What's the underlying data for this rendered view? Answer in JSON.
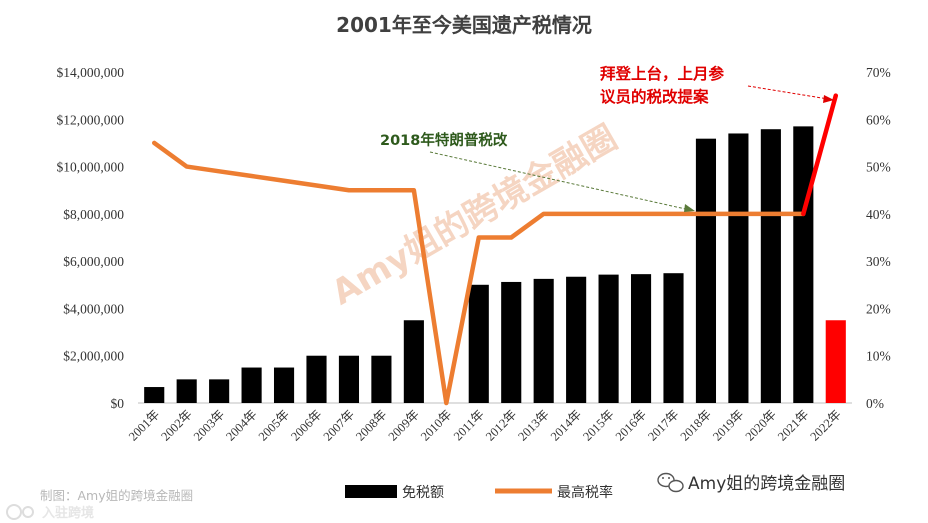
{
  "chart_data": {
    "type": "bar",
    "title": "2001年至今美国遗产税情况",
    "categories": [
      "2001年",
      "2002年",
      "2003年",
      "2004年",
      "2005年",
      "2006年",
      "2007年",
      "2008年",
      "2009年",
      "2010年",
      "2011年",
      "2012年",
      "2013年",
      "2014年",
      "2015年",
      "2016年",
      "2017年",
      "2018年",
      "2019年",
      "2020年",
      "2021年",
      "2022年"
    ],
    "series": [
      {
        "name": "免税额",
        "type": "bar",
        "axis": "left",
        "values": [
          675000,
          1000000,
          1000000,
          1500000,
          1500000,
          2000000,
          2000000,
          2000000,
          3500000,
          0,
          5000000,
          5120000,
          5250000,
          5340000,
          5430000,
          5450000,
          5490000,
          11180000,
          11400000,
          11580000,
          11700000,
          3500000
        ],
        "colors": [
          "#000000",
          "#000000",
          "#000000",
          "#000000",
          "#000000",
          "#000000",
          "#000000",
          "#000000",
          "#000000",
          "#000000",
          "#000000",
          "#000000",
          "#000000",
          "#000000",
          "#000000",
          "#000000",
          "#000000",
          "#000000",
          "#000000",
          "#000000",
          "#000000",
          "#ff0000"
        ]
      },
      {
        "name": "最高税率",
        "type": "line",
        "axis": "right",
        "values": [
          55,
          50,
          49,
          48,
          47,
          46,
          45,
          45,
          45,
          0,
          35,
          35,
          40,
          40,
          40,
          40,
          40,
          40,
          40,
          40,
          40,
          65
        ],
        "color": "#ed7d31",
        "last_segment_color": "#ff0000"
      }
    ],
    "y_left": {
      "min": 0,
      "max": 14000000,
      "step": 2000000,
      "tick_labels": [
        "$0",
        "$2,000,000",
        "$4,000,000",
        "$6,000,000",
        "$8,000,000",
        "$10,000,000",
        "$12,000,000",
        "$14,000,000"
      ]
    },
    "y_right": {
      "min": 0,
      "max": 70,
      "step": 10,
      "tick_labels": [
        "0%",
        "10%",
        "20%",
        "30%",
        "40%",
        "50%",
        "60%",
        "70%"
      ]
    },
    "grid": false,
    "legend_position": "bottom",
    "annotations": [
      {
        "text": "2018年特朗普税改",
        "color": "#2e5a1c",
        "points_to": "2018年"
      },
      {
        "text_lines": [
          "拜登上台，上月参",
          "议员的税改提案"
        ],
        "color": "#e00000",
        "points_to": "2022年"
      }
    ]
  },
  "watermark": "Amy姐的跨境金融圈",
  "credit": "制图：Amy姐的跨境金融圈",
  "brand": "Amy姐的跨境金融圈",
  "corner_mark": "入驻跨境"
}
